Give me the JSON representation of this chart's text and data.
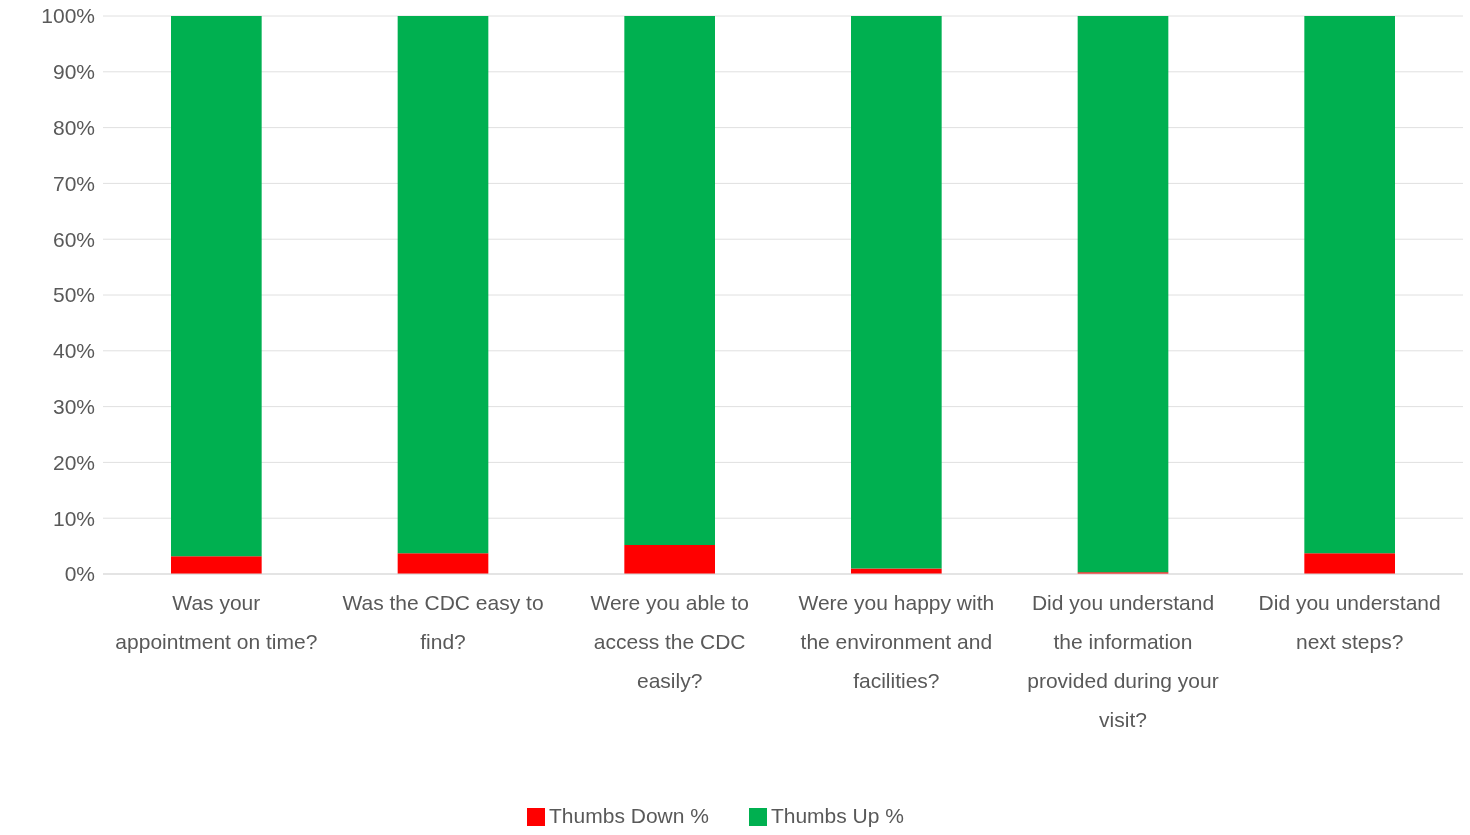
{
  "chart_data": {
    "type": "bar",
    "stacked": true,
    "categories": [
      "Was your appointment on time?",
      "Was the CDC easy to find?",
      "Were you able to access the CDC easily?",
      "Were you happy with the environment and facilities?",
      "Did you understand the information provided during your visit?",
      "Did you understand next steps?"
    ],
    "series": [
      {
        "name": "Thumbs Down %",
        "color": "#ff0000",
        "values": [
          3.2,
          3.7,
          5.2,
          1,
          0.3,
          3.7
        ]
      },
      {
        "name": "Thumbs Up %",
        "color": "#00b050",
        "values": [
          96.8,
          96.3,
          94.8,
          99,
          99.7,
          96.3
        ]
      }
    ],
    "ylim": [
      0,
      100
    ],
    "yticks": [
      {
        "value": 0,
        "label": "0%"
      },
      {
        "value": 10,
        "label": "10%"
      },
      {
        "value": 20,
        "label": "20%"
      },
      {
        "value": 30,
        "label": "30%"
      },
      {
        "value": 40,
        "label": "40%"
      },
      {
        "value": 50,
        "label": "50%"
      },
      {
        "value": 60,
        "label": "60%"
      },
      {
        "value": 70,
        "label": "70%"
      },
      {
        "value": 80,
        "label": "80%"
      },
      {
        "value": 90,
        "label": "90%"
      },
      {
        "value": 100,
        "label": "100%"
      }
    ],
    "grid": "y",
    "legend": "bottom"
  }
}
